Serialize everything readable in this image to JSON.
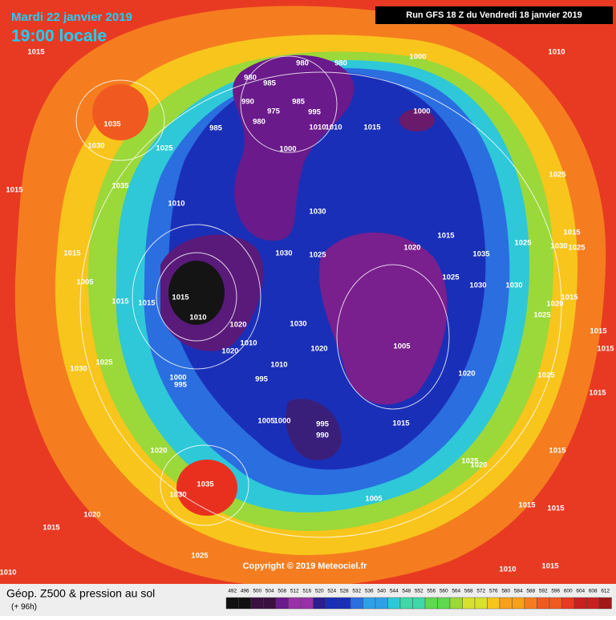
{
  "header": {
    "date": "Mardi 22 janvier 2019",
    "time": "19:00 locale"
  },
  "run": "Run GFS 18 Z du Vendredi 18 janvier 2019",
  "copyright": "Copyright © 2019 Meteociel.fr",
  "legend": {
    "title": "Géop. Z500 & pression au sol",
    "lead": "(+ 96h)",
    "scale": [
      492,
      496,
      500,
      504,
      508,
      512,
      516,
      520,
      524,
      528,
      532,
      536,
      540,
      544,
      548,
      552,
      556,
      560,
      564,
      568,
      572,
      576,
      580,
      584,
      588,
      592,
      596,
      600,
      604,
      608,
      612
    ]
  },
  "isobar_labels": [
    "1015",
    "1035",
    "1030",
    "1025",
    "1035",
    "1015",
    "1010",
    "1015",
    "1005",
    "1015",
    "1015",
    "1015",
    "1010",
    "1020",
    "1010",
    "1020",
    "1030",
    "1020",
    "1010",
    "1030",
    "1025",
    "1000",
    "995",
    "995",
    "1005",
    "1000",
    "995",
    "990",
    "1020",
    "1035",
    "1030",
    "1020",
    "1015",
    "1025",
    "1010",
    "980",
    "985",
    "990",
    "975",
    "980",
    "985",
    "985",
    "995",
    "1000",
    "1010",
    "1010",
    "1015",
    "980",
    "980",
    "1000",
    "1000",
    "1010",
    "1030",
    "1030",
    "1025",
    "1020",
    "1015",
    "1035",
    "1025",
    "1030",
    "1030",
    "1025",
    "1025",
    "1030",
    "1025",
    "1015",
    "1015",
    "1020",
    "1025",
    "1005",
    "1020",
    "1025",
    "1015",
    "1015",
    "1015",
    "1025",
    "1020",
    "1015",
    "1005",
    "1015",
    "1015",
    "1010",
    "1015",
    "1015"
  ]
}
